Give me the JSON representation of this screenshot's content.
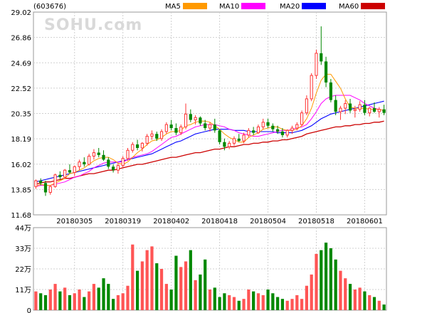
{
  "chart_data": {
    "type": "candlestick",
    "ticker": "(603676)",
    "watermark": "SOHU.com",
    "colors": {
      "up": "#ff3333",
      "down": "#008800",
      "ma5": "#ff9900",
      "ma10": "#ff00ff",
      "ma20": "#0000ff",
      "ma60": "#cc0000",
      "grid": "#d0d0d0"
    },
    "legend": [
      {
        "label": "MA5",
        "color": "#ff9900"
      },
      {
        "label": "MA10",
        "color": "#ff00ff"
      },
      {
        "label": "MA20",
        "color": "#0000ff"
      },
      {
        "label": "MA60",
        "color": "#cc0000"
      }
    ],
    "price_axis": {
      "min": 11.68,
      "max": 29.02,
      "ticks": [
        "29.02",
        "26.86",
        "24.69",
        "22.52",
        "20.35",
        "18.19",
        "16.02",
        "13.85",
        "11.68"
      ]
    },
    "volume_axis": {
      "min": 0,
      "max": 44,
      "ticks": [
        "44万",
        "33万",
        "22万",
        "11万",
        "0"
      ]
    },
    "date_labels": [
      {
        "label": "20180305",
        "index": 8
      },
      {
        "label": "20180319",
        "index": 18
      },
      {
        "label": "20180402",
        "index": 28
      },
      {
        "label": "20180418",
        "index": 38
      },
      {
        "label": "20180504",
        "index": 48
      },
      {
        "label": "20180518",
        "index": 58
      },
      {
        "label": "20180601",
        "index": 68
      }
    ],
    "ohlc": [
      [
        14.1,
        14.7,
        13.9,
        14.6
      ],
      [
        14.6,
        14.8,
        14.2,
        14.4
      ],
      [
        14.4,
        14.6,
        13.3,
        13.6
      ],
      [
        13.6,
        14.2,
        13.4,
        14.1
      ],
      [
        14.1,
        15.2,
        14.0,
        15.1
      ],
      [
        15.1,
        15.4,
        14.7,
        14.9
      ],
      [
        14.9,
        15.6,
        14.8,
        15.5
      ],
      [
        15.5,
        16.0,
        15.2,
        15.3
      ],
      [
        15.3,
        15.9,
        15.0,
        15.8
      ],
      [
        15.8,
        16.4,
        15.5,
        16.2
      ],
      [
        16.2,
        16.6,
        15.8,
        16.0
      ],
      [
        16.0,
        16.9,
        15.9,
        16.7
      ],
      [
        16.7,
        17.3,
        16.4,
        17.0
      ],
      [
        17.0,
        17.4,
        16.6,
        16.8
      ],
      [
        16.8,
        17.2,
        16.3,
        16.4
      ],
      [
        16.4,
        16.6,
        15.6,
        15.8
      ],
      [
        15.8,
        16.0,
        15.3,
        15.5
      ],
      [
        15.5,
        16.1,
        15.2,
        15.9
      ],
      [
        15.9,
        16.7,
        15.7,
        16.5
      ],
      [
        16.5,
        17.4,
        16.3,
        17.2
      ],
      [
        17.2,
        17.9,
        17.0,
        17.7
      ],
      [
        17.7,
        18.1,
        17.2,
        17.4
      ],
      [
        17.4,
        17.9,
        17.1,
        17.8
      ],
      [
        17.8,
        18.6,
        17.6,
        18.4
      ],
      [
        18.4,
        18.9,
        18.1,
        18.6
      ],
      [
        18.6,
        18.8,
        18.0,
        18.2
      ],
      [
        18.2,
        19.0,
        18.0,
        18.8
      ],
      [
        18.8,
        19.6,
        18.6,
        19.4
      ],
      [
        19.4,
        19.8,
        18.9,
        19.1
      ],
      [
        19.1,
        19.5,
        18.5,
        18.7
      ],
      [
        18.7,
        19.4,
        18.5,
        19.2
      ],
      [
        19.2,
        21.2,
        19.0,
        20.3
      ],
      [
        20.3,
        20.7,
        19.6,
        19.8
      ],
      [
        19.8,
        20.2,
        19.4,
        20.0
      ],
      [
        20.0,
        20.1,
        19.3,
        19.5
      ],
      [
        19.5,
        19.8,
        18.9,
        19.1
      ],
      [
        19.1,
        19.6,
        18.8,
        19.4
      ],
      [
        19.4,
        19.9,
        18.7,
        18.9
      ],
      [
        18.9,
        19.0,
        17.7,
        17.9
      ],
      [
        17.9,
        18.2,
        17.2,
        17.5
      ],
      [
        17.5,
        18.0,
        17.3,
        17.8
      ],
      [
        17.8,
        18.4,
        17.6,
        18.2
      ],
      [
        18.2,
        18.6,
        17.9,
        18.0
      ],
      [
        18.0,
        18.7,
        17.8,
        18.5
      ],
      [
        18.5,
        19.1,
        18.3,
        18.9
      ],
      [
        18.9,
        19.2,
        18.5,
        18.7
      ],
      [
        18.7,
        19.4,
        18.6,
        19.2
      ],
      [
        19.2,
        19.9,
        19.0,
        19.6
      ],
      [
        19.6,
        19.9,
        19.1,
        19.3
      ],
      [
        19.3,
        19.5,
        18.8,
        19.0
      ],
      [
        19.0,
        19.3,
        18.6,
        18.8
      ],
      [
        18.8,
        19.1,
        18.3,
        18.5
      ],
      [
        18.5,
        19.0,
        18.3,
        18.9
      ],
      [
        18.9,
        19.3,
        18.6,
        19.1
      ],
      [
        19.1,
        19.6,
        18.9,
        19.4
      ],
      [
        19.4,
        20.6,
        19.3,
        20.4
      ],
      [
        20.4,
        21.9,
        20.2,
        21.6
      ],
      [
        21.6,
        23.8,
        21.4,
        23.6
      ],
      [
        23.6,
        25.8,
        23.3,
        25.5
      ],
      [
        25.5,
        27.8,
        24.5,
        24.8
      ],
      [
        24.8,
        25.2,
        22.6,
        23.0
      ],
      [
        23.0,
        23.3,
        21.3,
        21.5
      ],
      [
        21.5,
        21.9,
        20.2,
        20.5
      ],
      [
        20.5,
        21.0,
        19.8,
        20.8
      ],
      [
        20.8,
        21.5,
        20.3,
        21.2
      ],
      [
        21.2,
        21.6,
        20.4,
        20.6
      ],
      [
        20.6,
        21.0,
        20.0,
        20.7
      ],
      [
        20.7,
        21.4,
        20.5,
        21.1
      ],
      [
        21.1,
        21.5,
        20.2,
        20.4
      ],
      [
        20.4,
        20.9,
        20.1,
        20.8
      ],
      [
        20.8,
        21.3,
        20.4,
        20.5
      ],
      [
        20.5,
        20.9,
        20.0,
        20.7
      ],
      [
        20.7,
        21.1,
        20.2,
        20.4
      ]
    ],
    "volume": [
      10,
      9,
      8,
      11,
      14,
      10,
      12,
      8,
      9,
      11,
      7,
      10,
      14,
      12,
      17,
      14,
      6,
      8,
      9,
      13,
      35,
      21,
      26,
      32,
      34,
      25,
      22,
      14,
      11,
      29,
      23,
      26,
      32,
      16,
      19,
      27,
      11,
      12,
      7,
      9,
      8,
      7,
      5,
      6,
      11,
      10,
      9,
      8,
      11,
      9,
      7,
      6,
      5,
      6,
      8,
      6,
      13,
      19,
      30,
      32,
      36,
      33,
      27,
      21,
      17,
      14,
      11,
      12,
      10,
      8,
      7,
      5,
      3
    ],
    "ma5": [
      14.1,
      14.3,
      14.2,
      14.2,
      14.4,
      14.6,
      14.8,
      15.2,
      15.3,
      15.5,
      15.7,
      16.0,
      16.3,
      16.5,
      16.6,
      16.6,
      16.4,
      16.1,
      16.0,
      16.2,
      16.6,
      17.0,
      17.3,
      17.7,
      18.0,
      18.1,
      18.3,
      18.6,
      18.8,
      18.8,
      18.9,
      19.3,
      19.4,
      19.6,
      19.7,
      19.7,
      19.6,
      19.3,
      19.0,
      18.6,
      18.3,
      18.1,
      17.9,
      17.9,
      18.3,
      18.5,
      18.7,
      19.0,
      19.1,
      19.2,
      19.2,
      19.0,
      18.9,
      18.9,
      19.0,
      19.3,
      19.9,
      20.8,
      22.1,
      23.2,
      23.7,
      23.7,
      23.1,
      22.5,
      21.6,
      20.9,
      20.8,
      20.8,
      20.8,
      20.7,
      20.7,
      20.7,
      20.6
    ],
    "ma10": [
      14.1,
      14.2,
      14.2,
      14.2,
      14.3,
      14.4,
      14.5,
      14.7,
      14.9,
      15.0,
      15.2,
      15.4,
      15.7,
      15.9,
      16.1,
      16.2,
      16.2,
      16.2,
      16.2,
      16.4,
      16.6,
      16.7,
      16.8,
      16.9,
      17.1,
      17.4,
      17.7,
      18.0,
      18.3,
      18.4,
      18.6,
      18.8,
      19.0,
      19.2,
      19.3,
      19.4,
      19.4,
      19.4,
      19.3,
      19.2,
      19.0,
      18.9,
      18.7,
      18.6,
      18.5,
      18.4,
      18.4,
      18.5,
      18.6,
      18.7,
      18.8,
      18.9,
      18.9,
      19.0,
      19.1,
      19.2,
      19.4,
      19.9,
      20.5,
      21.2,
      21.6,
      21.8,
      21.9,
      21.9,
      21.9,
      21.9,
      21.7,
      21.5,
      21.2,
      21.0,
      20.8,
      20.7,
      20.6
    ],
    "ma20": [
      14.5,
      14.6,
      14.7,
      14.8,
      14.9,
      15.0,
      15.1,
      15.2,
      15.3,
      15.4,
      15.5,
      15.6,
      15.7,
      15.8,
      15.9,
      16.0,
      16.1,
      16.2,
      16.3,
      16.4,
      16.5,
      16.6,
      16.7,
      16.8,
      16.9,
      17.1,
      17.3,
      17.5,
      17.7,
      17.9,
      18.0,
      18.2,
      18.4,
      18.6,
      18.7,
      18.8,
      18.9,
      19.0,
      19.0,
      19.0,
      19.0,
      18.9,
      18.9,
      18.9,
      18.8,
      18.8,
      18.8,
      18.8,
      18.8,
      18.8,
      18.7,
      18.7,
      18.7,
      18.7,
      18.8,
      18.9,
      19.1,
      19.3,
      19.6,
      19.9,
      20.1,
      20.3,
      20.4,
      20.5,
      20.6,
      20.7,
      20.8,
      20.9,
      21.0,
      21.1,
      21.2,
      21.3,
      21.4
    ],
    "ma60": [
      14.3,
      14.4,
      14.5,
      14.5,
      14.6,
      14.7,
      14.8,
      14.8,
      14.9,
      15.0,
      15.1,
      15.2,
      15.2,
      15.3,
      15.4,
      15.5,
      15.5,
      15.6,
      15.7,
      15.8,
      15.9,
      16.0,
      16.0,
      16.1,
      16.2,
      16.3,
      16.4,
      16.5,
      16.6,
      16.6,
      16.7,
      16.8,
      16.9,
      17.0,
      17.0,
      17.1,
      17.2,
      17.3,
      17.3,
      17.4,
      17.5,
      17.5,
      17.6,
      17.7,
      17.7,
      17.8,
      17.8,
      17.9,
      17.9,
      18.0,
      18.0,
      18.1,
      18.1,
      18.2,
      18.3,
      18.4,
      18.6,
      18.7,
      18.8,
      18.9,
      19.0,
      19.1,
      19.2,
      19.2,
      19.3,
      19.3,
      19.4,
      19.4,
      19.5,
      19.5,
      19.6,
      19.6,
      19.7
    ]
  }
}
